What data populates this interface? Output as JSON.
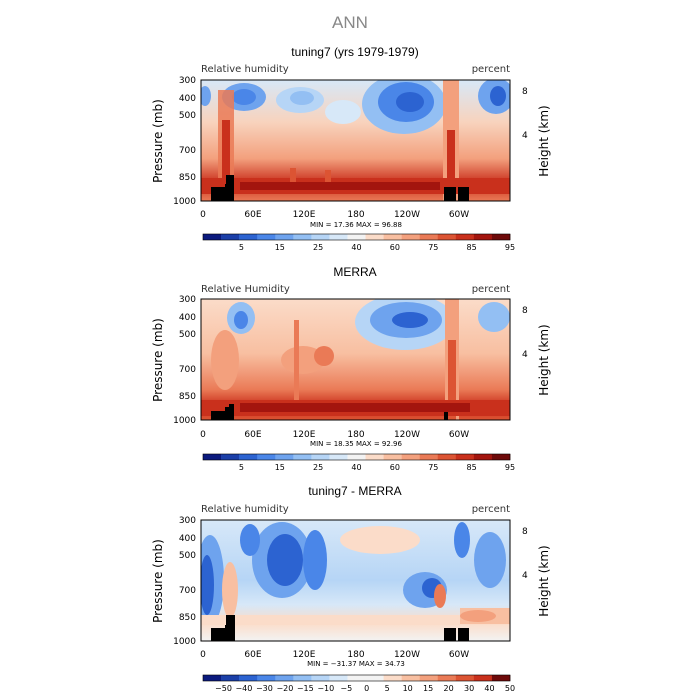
{
  "figure_title": "ANN",
  "chart_data": [
    {
      "type": "heatmap",
      "title": "tuning7 (yrs 1979-1979)",
      "left_label": "Relative humidity",
      "right_label": "percent",
      "ylabel": "Pressure (mb)",
      "y2label": "Height (km)",
      "x_ticks": [
        "0",
        "60E",
        "120E",
        "180",
        "120W",
        "60W"
      ],
      "y_ticks": [
        "300",
        "400",
        "500",
        "700",
        "850",
        "1000"
      ],
      "y2_ticks": [
        "8",
        "4"
      ],
      "stats": "MIN =   17.36   MAX =   96.88",
      "min": 17.36,
      "max": 96.88,
      "colorbar_labels": [
        "5",
        "15",
        "25",
        "40",
        "60",
        "75",
        "85",
        "95"
      ],
      "colorbar_colors": [
        "#0b1a7e",
        "#1b3fa8",
        "#2c63d1",
        "#4a86e8",
        "#6ea3ee",
        "#93bff3",
        "#b6d5f6",
        "#d7e8f8",
        "#f3f3f3",
        "#fbdcc9",
        "#f8bfa1",
        "#f3a07d",
        "#ea7a56",
        "#dc5433",
        "#c9301c",
        "#a3150e",
        "#6e0a0a"
      ],
      "orography_blocks": [
        [
          10,
          18
        ],
        [
          18,
          26
        ],
        [
          26,
          32
        ],
        [
          245,
          255
        ],
        [
          255,
          263
        ]
      ]
    },
    {
      "type": "heatmap",
      "title": "MERRA",
      "left_label": "Relative Humidity",
      "right_label": "percent",
      "ylabel": "Pressure (mb)",
      "y2label": "Height (km)",
      "x_ticks": [
        "0",
        "60E",
        "120E",
        "180",
        "120W",
        "60W"
      ],
      "y_ticks": [
        "300",
        "400",
        "500",
        "700",
        "850",
        "1000"
      ],
      "y2_ticks": [
        "8",
        "4"
      ],
      "stats": "MIN =   18.35   MAX =   92.96",
      "min": 18.35,
      "max": 92.96,
      "colorbar_labels": [
        "5",
        "15",
        "25",
        "40",
        "60",
        "75",
        "85",
        "95"
      ],
      "colorbar_colors": [
        "#0b1a7e",
        "#1b3fa8",
        "#2c63d1",
        "#4a86e8",
        "#6ea3ee",
        "#93bff3",
        "#b6d5f6",
        "#d7e8f8",
        "#f3f3f3",
        "#fbdcc9",
        "#f8bfa1",
        "#f3a07d",
        "#ea7a56",
        "#dc5433",
        "#c9301c",
        "#a3150e",
        "#6e0a0a"
      ],
      "orography_blocks": [
        [
          10,
          18
        ],
        [
          18,
          26
        ],
        [
          26,
          32
        ],
        [
          245,
          249
        ]
      ]
    },
    {
      "type": "heatmap",
      "title": "tuning7 - MERRA",
      "left_label": "Relative humidity",
      "right_label": "percent",
      "ylabel": "Pressure (mb)",
      "y2label": "Height (km)",
      "x_ticks": [
        "0",
        "60E",
        "120E",
        "180",
        "120W",
        "60W"
      ],
      "y_ticks": [
        "300",
        "400",
        "500",
        "700",
        "850",
        "1000"
      ],
      "y2_ticks": [
        "8",
        "4"
      ],
      "stats": "MIN =  −31.37   MAX =   34.73",
      "min": -31.37,
      "max": 34.73,
      "colorbar_labels": [
        "−50",
        "−40",
        "−30",
        "−20",
        "−15",
        "−10",
        "−5",
        "0",
        "5",
        "10",
        "15",
        "20",
        "30",
        "40",
        "50"
      ],
      "colorbar_colors": [
        "#0b1a7e",
        "#1b3fa8",
        "#2c63d1",
        "#4a86e8",
        "#6ea3ee",
        "#93bff3",
        "#b6d5f6",
        "#d7e8f8",
        "#f3f3f3",
        "#f3f3f3",
        "#fbdcc9",
        "#f8bfa1",
        "#f3a07d",
        "#ea7a56",
        "#dc5433",
        "#c9301c",
        "#6e0a0a"
      ],
      "orography_blocks": [
        [
          10,
          18
        ],
        [
          18,
          26
        ],
        [
          26,
          32
        ],
        [
          245,
          255
        ],
        [
          255,
          263
        ]
      ]
    }
  ]
}
